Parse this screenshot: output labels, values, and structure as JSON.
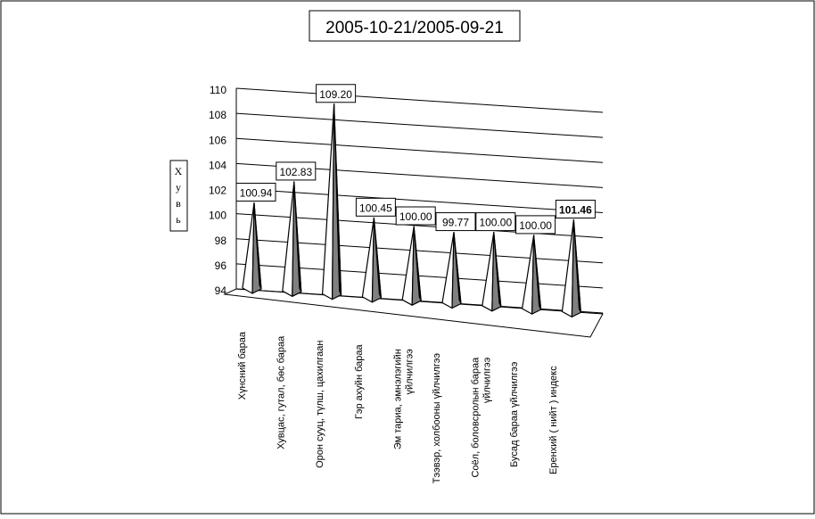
{
  "chart_data": {
    "type": "bar",
    "title": "2005-10-21/2005-09-21",
    "ylabel": "Хувь",
    "ylim": [
      94,
      110
    ],
    "yticks": [
      94,
      96,
      98,
      100,
      102,
      104,
      106,
      108,
      110
    ],
    "grid": true,
    "categories": [
      "Хүнсний бараа",
      "Хувцас, гутал, бөс бараа",
      "Орон сууц, түлш, цахилгаан",
      "Гэр ахуйн бараа",
      "Эм тариа, эмнэлэгийн үйлчилгээ",
      "Тээвэр, холбооны үйлчилгээ",
      "Соёл, боловсролын бараа үйлчилгээ",
      "Бусад бараа үйлчилгээ",
      "Еренхий ( нийт ) индекс"
    ],
    "values": [
      100.94,
      102.83,
      109.2,
      100.45,
      100.0,
      99.77,
      100.0,
      100.0,
      101.46
    ],
    "data_labels": [
      "100.94",
      "102.83",
      "109.20",
      "100.45",
      "100.00",
      "99.77",
      "100.00",
      "100.00",
      "101.46"
    ],
    "bold_category": "Еренхий ( нийт ) индекс"
  }
}
